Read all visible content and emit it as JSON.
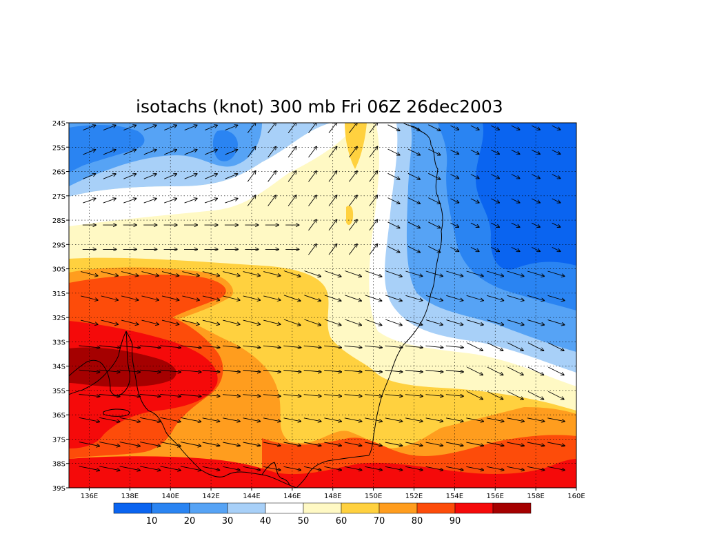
{
  "title": "isotachs (knot) 300 mb Fri 06Z 26dec2003",
  "colors": {
    "b1": "#0a64f0",
    "b2": "#2a84f2",
    "b3": "#56a3f5",
    "b4": "#a8d0f8",
    "b5": "#ffffff",
    "b6": "#fff9c4",
    "b7": "#ffd13f",
    "b8": "#ff9d1e",
    "b9": "#fd4c0a",
    "b10": "#f50a0a",
    "b11": "#a50000",
    "coast": "#000000",
    "grid": "#000000"
  },
  "map": {
    "lat_labels": [
      "24S",
      "25S",
      "26S",
      "27S",
      "28S",
      "29S",
      "30S",
      "31S",
      "32S",
      "33S",
      "34S",
      "35S",
      "36S",
      "37S",
      "38S",
      "39S"
    ],
    "lon_labels": [
      "136E",
      "138E",
      "140E",
      "142E",
      "144E",
      "146E",
      "148E",
      "150E",
      "152E",
      "154E",
      "156E",
      "158E",
      "160E"
    ],
    "lat_range": [
      -39,
      -24
    ],
    "lon_range": [
      135,
      160
    ]
  },
  "colorbar": {
    "labels": [
      "10",
      "20",
      "30",
      "40",
      "50",
      "60",
      "70",
      "80",
      "90"
    ],
    "colors": [
      "#0a64f0",
      "#2a84f2",
      "#56a3f5",
      "#a8d0f8",
      "#ffffff",
      "#fff9c4",
      "#ffd13f",
      "#ff9d1e",
      "#fd4c0a",
      "#f50a0a",
      "#a50000"
    ]
  }
}
